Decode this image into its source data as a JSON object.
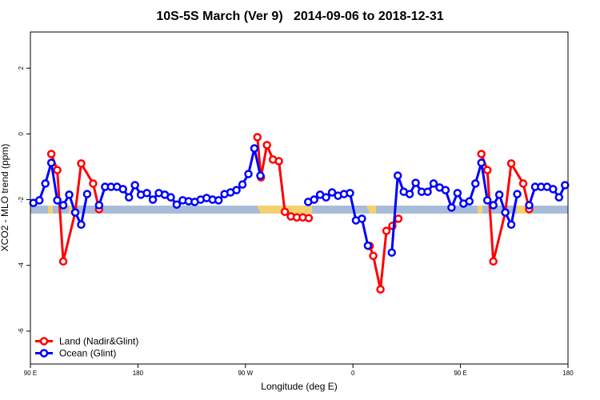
{
  "chart_data": {
    "type": "line",
    "title": "10S-5S March (Ver 9)   2014-09-06 to 2018-12-31",
    "xlabel": "Longitude (deg E)",
    "ylabel": "XCO2 - MLO trend (ppm)",
    "xlim": [
      90,
      540
    ],
    "ylim": [
      -7,
      3.1
    ],
    "xticks": [
      {
        "value": 90,
        "label": "90 E"
      },
      180,
      {
        "value": 270,
        "label": "90 W"
      },
      {
        "value": 360,
        "label": "0"
      },
      {
        "value": 450,
        "label": "90 E"
      },
      {
        "value": 540,
        "label": "180"
      }
    ],
    "yticks": [
      -6,
      -4,
      -2,
      0,
      2
    ],
    "legend": "bottom-left",
    "series": [
      {
        "name": "Land (Nadir&Glint)",
        "color": "#ff0000",
        "x": [
          107.5,
          112.5,
          117.5,
          127.5,
          132.5,
          142.5,
          147.5,
          null,
          280,
          283,
          288,
          293,
          298,
          303,
          308,
          313,
          318,
          323,
          null,
          374,
          377,
          383,
          388,
          393,
          398,
          null,
          467.5,
          472.5,
          477.5,
          487.5,
          492.5,
          502.5,
          507.5
        ],
        "values": [
          -0.61,
          -1.1,
          -3.88,
          -2.39,
          -0.9,
          -1.51,
          -2.29,
          null,
          -0.1,
          -1.32,
          -0.34,
          -0.78,
          -0.83,
          -2.37,
          -2.51,
          -2.54,
          -2.54,
          -2.56,
          null,
          -3.41,
          -3.71,
          -4.73,
          -2.95,
          -2.8,
          -2.58,
          null,
          -0.61,
          -1.1,
          -3.88,
          -2.39,
          -0.9,
          -1.51,
          -2.29
        ]
      },
      {
        "name": "Ocean (Glint)",
        "color": "#0000ff",
        "x": [
          92.5,
          97.5,
          102.5,
          107.5,
          112.5,
          117.5,
          122.5,
          127.5,
          132.5,
          137.5,
          142.5,
          147.5,
          152.5,
          157.5,
          162.5,
          167.5,
          172.5,
          177.5,
          182.5,
          187.5,
          192.5,
          197.5,
          202.5,
          207.5,
          212.5,
          217.5,
          222.5,
          227.5,
          232.5,
          237.5,
          242.5,
          247.5,
          252.5,
          257.5,
          262.5,
          267.5,
          272.5,
          277.5,
          282.5,
          287.5,
          292.5,
          297.5,
          302.5,
          307.5,
          312.5,
          317.5,
          322.5,
          327.5,
          332.5,
          337.5,
          342.5,
          347.5,
          352.5,
          357.5,
          362.5,
          367.5,
          372.5,
          377.5,
          382.5,
          387.5,
          392.5,
          397.5,
          402.5,
          407.5,
          412.5,
          417.5,
          422.5,
          427.5,
          432.5,
          437.5,
          442.5,
          447.5,
          452.5,
          457.5,
          462.5,
          467.5,
          472.5,
          477.5,
          482.5,
          487.5,
          492.5,
          497.5,
          502.5,
          507.5,
          512.5,
          517.5,
          522.5,
          527.5,
          532.5,
          537.5
        ],
        "values": [
          -2.1,
          -2.02,
          -1.51,
          -0.88,
          -2.02,
          -2.17,
          -1.85,
          -2.39,
          -2.76,
          -1.83,
          null,
          -2.17,
          -1.61,
          -1.61,
          -1.61,
          -1.68,
          -1.93,
          -1.56,
          -1.85,
          -1.8,
          -2.0,
          -1.8,
          -1.85,
          -1.93,
          -2.15,
          -2.02,
          -2.05,
          -2.07,
          -2.0,
          -1.95,
          -2.0,
          -2.02,
          -1.83,
          -1.78,
          -1.71,
          -1.54,
          -1.22,
          -0.44,
          -1.27,
          null,
          null,
          null,
          null,
          null,
          null,
          null,
          -2.07,
          -2.0,
          -1.85,
          -1.93,
          -1.78,
          -1.88,
          -1.83,
          -1.8,
          -2.63,
          -2.58,
          -3.4,
          null,
          null,
          null,
          -3.61,
          -1.27,
          -1.76,
          -1.83,
          -1.49,
          -1.76,
          -1.76,
          -1.51,
          -1.63,
          -1.71,
          -2.24,
          -1.8,
          -2.12,
          -2.05,
          -1.51,
          -0.88,
          -2.02,
          -2.17,
          -1.85,
          -2.39,
          -2.76,
          -1.83,
          null,
          -2.17,
          -1.61,
          -1.61,
          -1.61,
          -1.68,
          -1.93,
          -1.56
        ]
      }
    ]
  }
}
